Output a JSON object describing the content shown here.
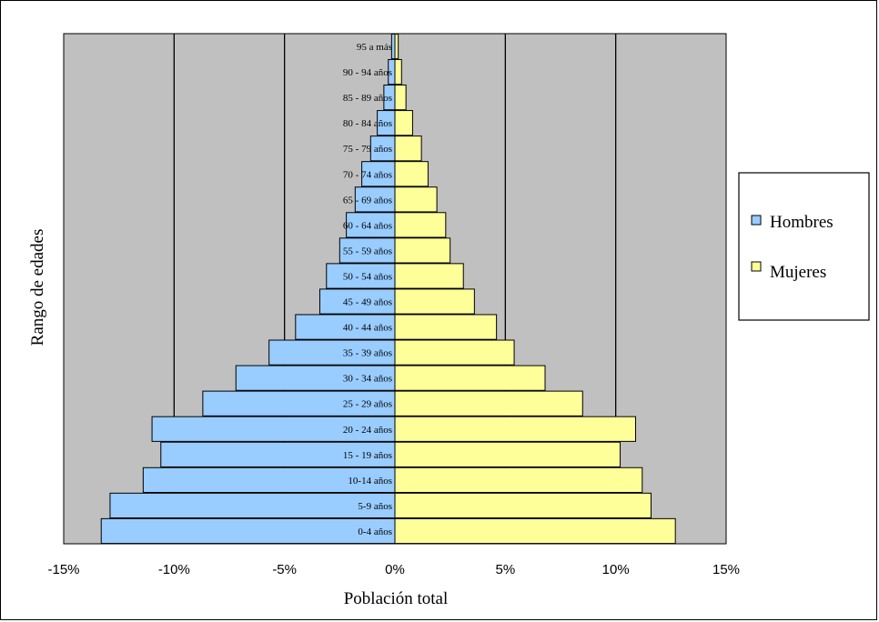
{
  "chart_data": {
    "type": "bar",
    "orientation": "horizontal",
    "xlabel": "Población total",
    "ylabel": "Rango de edades",
    "xlim": [
      -15,
      15
    ],
    "xticks": [
      -15,
      -10,
      -5,
      0,
      5,
      10,
      15
    ],
    "xtick_labels": [
      "-15%",
      "-10%",
      "-5%",
      "0%",
      "5%",
      "10%",
      "15%"
    ],
    "categories": [
      "0-4 años",
      "5-9 años",
      "10-14 años",
      "15 - 19 años",
      "20 - 24 años",
      "25 - 29 años",
      "30 - 34 años",
      "35 - 39 años",
      "40 - 44 años",
      "45 - 49 años",
      "50 - 54 años",
      "55 - 59 años",
      "60 - 64 años",
      "65 - 69 años",
      "70 - 74 años",
      "75 - 79 años",
      "80 - 84 años",
      "85 - 89 años",
      "90 - 94 años",
      "95 a más"
    ],
    "series": [
      {
        "name": "Hombres",
        "color": "#99ccff",
        "values": [
          -13.3,
          -12.9,
          -11.4,
          -10.6,
          -11.0,
          -8.7,
          -7.2,
          -5.7,
          -4.5,
          -3.4,
          -3.1,
          -2.5,
          -2.2,
          -1.8,
          -1.5,
          -1.1,
          -0.8,
          -0.5,
          -0.3,
          -0.15
        ]
      },
      {
        "name": "Mujeres",
        "color": "#ffff99",
        "values": [
          12.7,
          11.6,
          11.2,
          10.2,
          10.9,
          8.5,
          6.8,
          5.4,
          4.6,
          3.6,
          3.1,
          2.5,
          2.3,
          1.9,
          1.5,
          1.2,
          0.8,
          0.5,
          0.3,
          0.15
        ]
      }
    ],
    "grid": true,
    "plot_background": "#c0c0c0",
    "legend_position": "right"
  }
}
